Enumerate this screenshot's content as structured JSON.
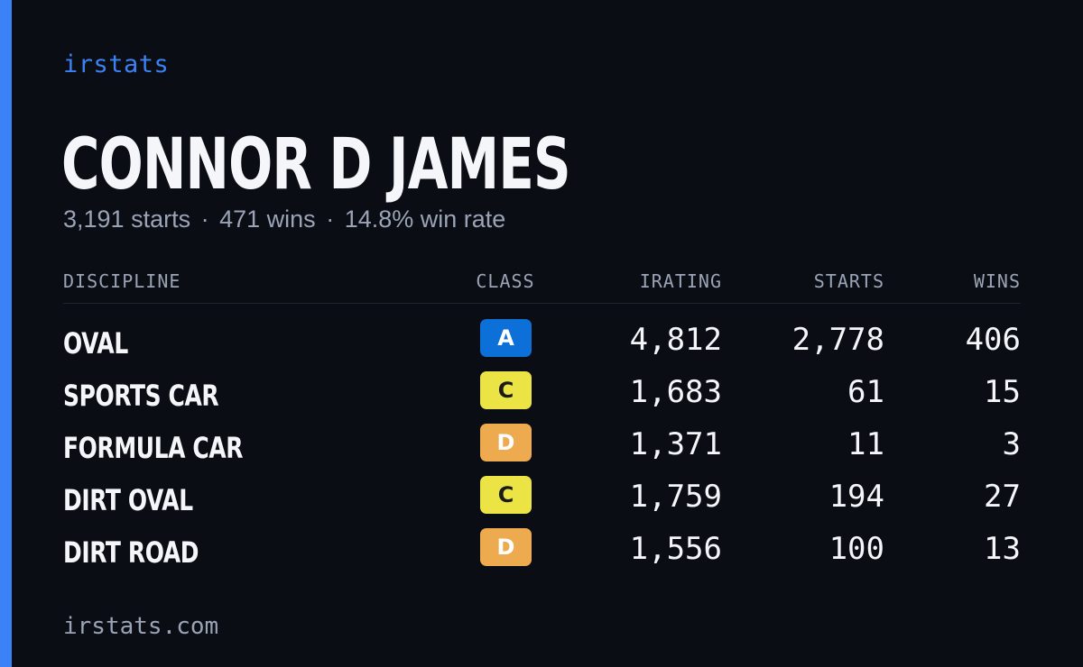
{
  "brand": "irstats",
  "driver": {
    "name": "CONNOR D JAMES",
    "starts_text": "3,191 starts",
    "wins_text": "471 wins",
    "win_rate_text": "14.8% win rate",
    "separator": "·"
  },
  "table": {
    "headers": {
      "discipline": "DISCIPLINE",
      "class": "CLASS",
      "irating": "IRATING",
      "starts": "STARTS",
      "wins": "WINS"
    },
    "rows": [
      {
        "discipline": "OVAL",
        "class": "A",
        "class_bg": "#0d6fd8",
        "class_fg": "#ffffff",
        "irating": "4,812",
        "starts": "2,778",
        "wins": "406"
      },
      {
        "discipline": "SPORTS CAR",
        "class": "C",
        "class_bg": "#ece445",
        "class_fg": "#1a1a1a",
        "irating": "1,683",
        "starts": "61",
        "wins": "15"
      },
      {
        "discipline": "FORMULA CAR",
        "class": "D",
        "class_bg": "#eeaa4e",
        "class_fg": "#ffffff",
        "irating": "1,371",
        "starts": "11",
        "wins": "3"
      },
      {
        "discipline": "DIRT OVAL",
        "class": "C",
        "class_bg": "#ece445",
        "class_fg": "#1a1a1a",
        "irating": "1,759",
        "starts": "194",
        "wins": "27"
      },
      {
        "discipline": "DIRT ROAD",
        "class": "D",
        "class_bg": "#eeaa4e",
        "class_fg": "#ffffff",
        "irating": "1,556",
        "starts": "100",
        "wins": "13"
      }
    ]
  },
  "footer": "irstats.com",
  "colors": {
    "accent": "#3b82f6",
    "background": "#0a0d14",
    "text_primary": "#f4f6fa",
    "text_muted": "#9aa4b6"
  }
}
